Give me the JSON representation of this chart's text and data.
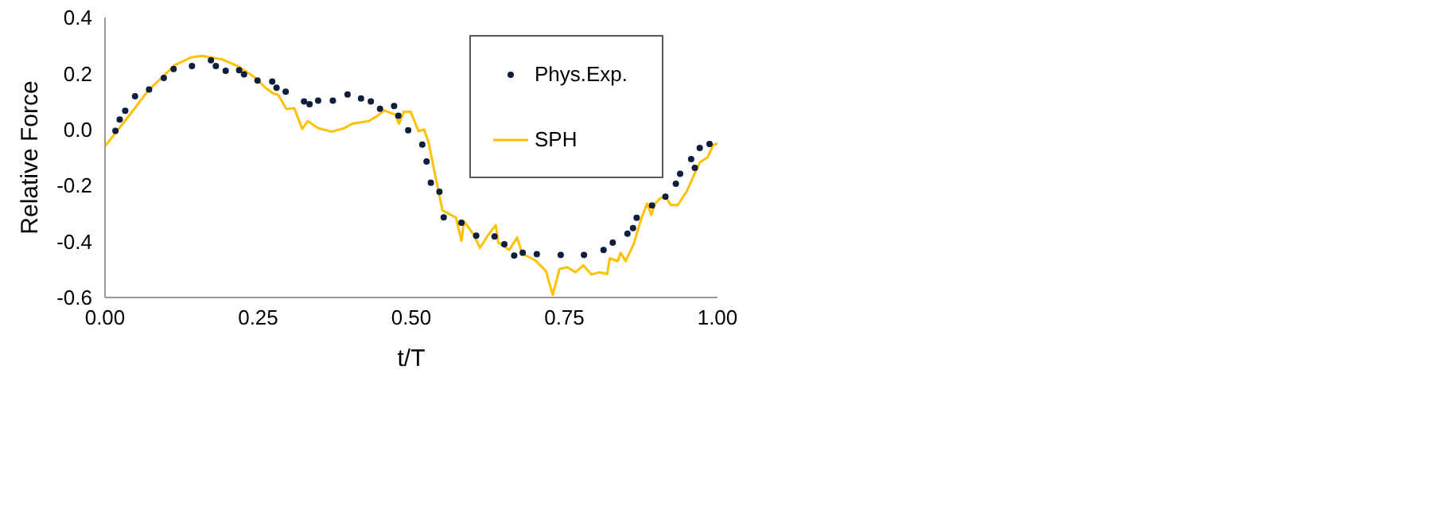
{
  "chart_data": {
    "type": "scatter",
    "xlabel": "t/T",
    "ylabel": "Relative Force",
    "xlim": [
      0,
      1
    ],
    "ylim": [
      -0.6,
      0.4
    ],
    "xticks": [
      {
        "value": 0,
        "label": "0.00"
      },
      {
        "value": 0.25,
        "label": "0.25"
      },
      {
        "value": 0.5,
        "label": "0.50"
      },
      {
        "value": 0.75,
        "label": "0.75"
      },
      {
        "value": 1,
        "label": "1.00"
      }
    ],
    "yticks": [
      {
        "value": -0.6,
        "label": "-0.6"
      },
      {
        "value": -0.4,
        "label": "-0.4"
      },
      {
        "value": -0.2,
        "label": "-0.2"
      },
      {
        "value": 0,
        "label": "0.0"
      },
      {
        "value": 0.2,
        "label": "0.2"
      },
      {
        "value": 0.4,
        "label": "0.4"
      }
    ],
    "grid": false,
    "legend": "top right",
    "series": [
      {
        "name": "Phys.Exp.",
        "marker": "circle",
        "color": "#0d1f3c",
        "x": [
          0.017,
          0.024,
          0.033,
          0.049,
          0.072,
          0.096,
          0.112,
          0.142,
          0.173,
          0.181,
          0.197,
          0.219,
          0.227,
          0.249,
          0.273,
          0.28,
          0.295,
          0.325,
          0.334,
          0.348,
          0.372,
          0.396,
          0.418,
          0.434,
          0.449,
          0.472,
          0.479,
          0.495,
          0.518,
          0.525,
          0.532,
          0.546,
          0.553,
          0.582,
          0.606,
          0.636,
          0.652,
          0.668,
          0.682,
          0.705,
          0.744,
          0.782,
          0.814,
          0.829,
          0.853,
          0.862,
          0.868,
          0.893,
          0.915,
          0.932,
          0.939,
          0.957,
          0.963,
          0.971,
          0.987
        ],
        "values": [
          -0.005,
          0.036,
          0.067,
          0.119,
          0.143,
          0.184,
          0.216,
          0.227,
          0.247,
          0.227,
          0.21,
          0.212,
          0.197,
          0.175,
          0.171,
          0.149,
          0.135,
          0.1,
          0.09,
          0.103,
          0.103,
          0.125,
          0.111,
          0.1,
          0.074,
          0.084,
          0.049,
          -0.003,
          -0.054,
          -0.114,
          -0.19,
          -0.222,
          -0.314,
          -0.333,
          -0.379,
          -0.382,
          -0.41,
          -0.45,
          -0.44,
          -0.445,
          -0.448,
          -0.448,
          -0.43,
          -0.404,
          -0.372,
          -0.352,
          -0.315,
          -0.271,
          -0.24,
          -0.194,
          -0.158,
          -0.106,
          -0.137,
          -0.066,
          -0.052
        ]
      },
      {
        "name": "SPH",
        "type": "line",
        "line_style": "solid",
        "color": "#ffc000",
        "x": [
          0,
          0.036,
          0.071,
          0.114,
          0.14,
          0.158,
          0.192,
          0.218,
          0.244,
          0.262,
          0.274,
          0.283,
          0.296,
          0.309,
          0.322,
          0.331,
          0.348,
          0.37,
          0.391,
          0.404,
          0.43,
          0.443,
          0.456,
          0.474,
          0.48,
          0.488,
          0.499,
          0.512,
          0.521,
          0.528,
          0.538,
          0.551,
          0.573,
          0.582,
          0.586,
          0.603,
          0.612,
          0.625,
          0.638,
          0.642,
          0.66,
          0.673,
          0.681,
          0.703,
          0.72,
          0.731,
          0.742,
          0.755,
          0.768,
          0.781,
          0.794,
          0.807,
          0.82,
          0.824,
          0.837,
          0.842,
          0.85,
          0.863,
          0.876,
          0.885,
          0.892,
          0.898,
          0.906,
          0.915,
          0.924,
          0.935,
          0.95,
          0.963,
          0.971,
          0.984,
          0.993,
          1.0
        ],
        "values": [
          -0.06,
          0.04,
          0.14,
          0.23,
          0.257,
          0.263,
          0.25,
          0.225,
          0.187,
          0.149,
          0.13,
          0.123,
          0.073,
          0.076,
          0.002,
          0.03,
          0.005,
          -0.008,
          0.005,
          0.021,
          0.03,
          0.046,
          0.068,
          0.053,
          0.021,
          0.063,
          0.063,
          -0.006,
          0,
          -0.044,
          -0.151,
          -0.289,
          -0.315,
          -0.398,
          -0.328,
          -0.379,
          -0.423,
          -0.379,
          -0.341,
          -0.404,
          -0.43,
          -0.386,
          -0.443,
          -0.468,
          -0.506,
          -0.591,
          -0.498,
          -0.492,
          -0.51,
          -0.485,
          -0.518,
          -0.51,
          -0.516,
          -0.46,
          -0.47,
          -0.44,
          -0.47,
          -0.41,
          -0.315,
          -0.265,
          -0.305,
          -0.265,
          -0.246,
          -0.24,
          -0.27,
          -0.27,
          -0.22,
          -0.156,
          -0.118,
          -0.099,
          -0.055,
          -0.05
        ]
      }
    ]
  }
}
